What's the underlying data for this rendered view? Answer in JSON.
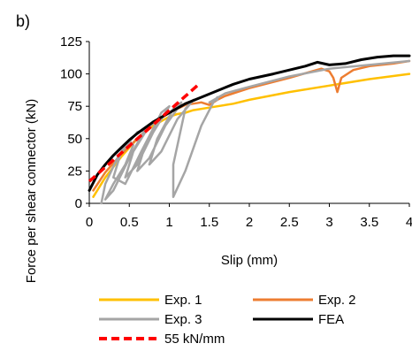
{
  "chart_data": {
    "type": "line",
    "panel_label": "b)",
    "title": "",
    "xlabel": "Slip (mm)",
    "ylabel": "Force per shear connector (kN)",
    "xlim": [
      0,
      4
    ],
    "ylim": [
      0,
      125
    ],
    "xticks": [
      "0",
      "0.5",
      "1",
      "1.5",
      "2",
      "2.5",
      "3",
      "3.5",
      "4"
    ],
    "yticks": [
      "0",
      "25",
      "50",
      "75",
      "100",
      "125"
    ],
    "grid": false,
    "legend_position": "bottom",
    "series": [
      {
        "name": "Exp. 1",
        "color": "#FFC000",
        "dash": "solid",
        "x": [
          0.05,
          0.2,
          0.4,
          0.6,
          0.8,
          1.0,
          1.1,
          1.2,
          1.3,
          1.5,
          1.8,
          2.0,
          2.5,
          3.0,
          3.5,
          4.0
        ],
        "y": [
          5,
          20,
          36,
          50,
          60,
          67,
          69,
          70,
          72,
          74,
          77,
          80,
          86,
          91,
          96,
          100
        ]
      },
      {
        "name": "Exp. 2",
        "color": "#ED7D31",
        "dash": "solid",
        "x": [
          0.05,
          0.2,
          0.4,
          0.6,
          0.8,
          1.0,
          1.2,
          1.4,
          1.5,
          1.6,
          1.7,
          2.0,
          2.5,
          2.9,
          3.0,
          3.05,
          3.1,
          3.15,
          3.3,
          3.5,
          3.8,
          4.0
        ],
        "y": [
          10,
          24,
          38,
          50,
          62,
          70,
          76,
          78,
          76,
          80,
          83,
          89,
          97,
          104,
          102,
          97,
          86,
          97,
          103,
          106,
          108,
          110
        ]
      },
      {
        "name": "Exp. 3",
        "color": "#A5A5A5",
        "dash": "solid",
        "x": [
          0.15,
          0.2,
          0.35,
          0.5,
          0.55,
          0.45,
          0.3,
          0.2,
          0.3,
          0.5,
          0.65,
          0.7,
          0.6,
          0.4,
          0.3,
          0.45,
          0.65,
          0.8,
          0.85,
          0.75,
          0.55,
          0.45,
          0.6,
          0.8,
          0.95,
          1.0,
          0.9,
          0.7,
          0.6,
          0.75,
          0.95,
          1.1,
          1.15,
          1.05,
          0.85,
          0.75,
          0.9,
          1.1,
          1.25,
          1.3,
          1.2,
          1.05,
          1.05,
          1.2,
          1.4,
          1.55,
          1.6,
          1.6,
          1.5,
          1.7,
          2.0,
          2.5,
          3.0,
          3.5,
          4.0
        ],
        "y": [
          0,
          15,
          35,
          48,
          45,
          30,
          15,
          3,
          10,
          35,
          52,
          57,
          55,
          40,
          20,
          15,
          40,
          58,
          64,
          60,
          40,
          20,
          30,
          55,
          70,
          75,
          70,
          45,
          25,
          35,
          60,
          73,
          78,
          73,
          50,
          30,
          40,
          65,
          76,
          80,
          73,
          30,
          5,
          25,
          60,
          78,
          82,
          80,
          78,
          85,
          90,
          98,
          104,
          107,
          110
        ]
      },
      {
        "name": "FEA",
        "color": "#000000",
        "dash": "solid",
        "x": [
          0.0,
          0.1,
          0.2,
          0.3,
          0.4,
          0.5,
          0.6,
          0.8,
          1.0,
          1.2,
          1.4,
          1.6,
          1.8,
          2.0,
          2.3,
          2.5,
          2.7,
          2.85,
          3.0,
          3.2,
          3.4,
          3.6,
          3.8,
          4.0
        ],
        "y": [
          10,
          22,
          30,
          37,
          43,
          49,
          54,
          63,
          70,
          77,
          82,
          87,
          92,
          96,
          100,
          103,
          106,
          109,
          107,
          108,
          111,
          113,
          114,
          114
        ]
      },
      {
        "name": "55 kN/mm",
        "color": "#FF0000",
        "dash": "dashed",
        "x": [
          0.0,
          1.35
        ],
        "y": [
          17,
          91
        ]
      }
    ]
  }
}
